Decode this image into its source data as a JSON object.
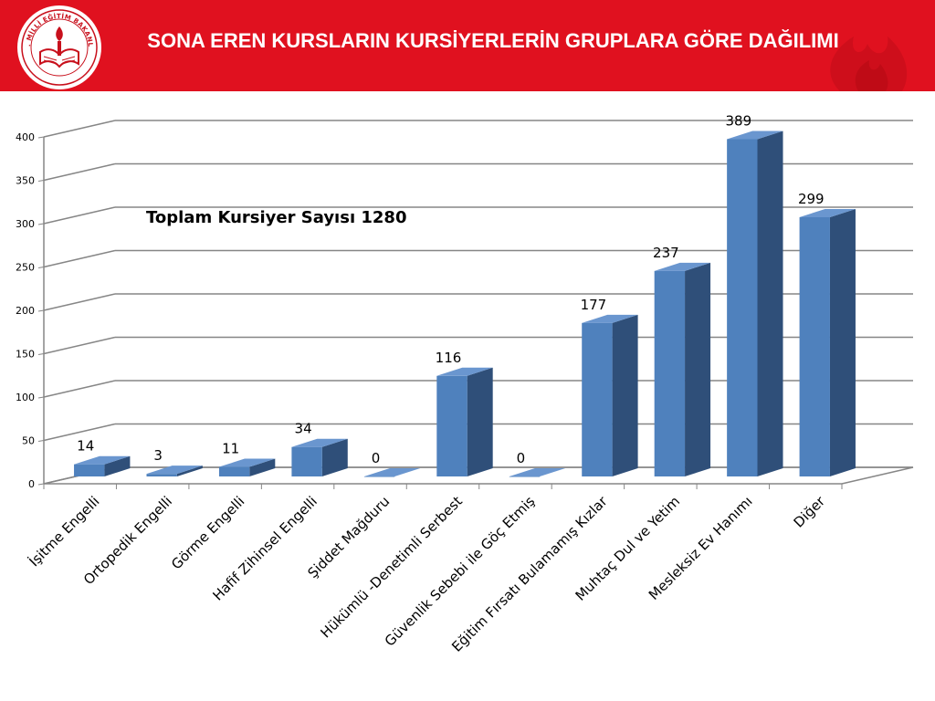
{
  "header": {
    "title": "SONA EREN KURSLARIN KURSİYERLERİN GRUPLARA GÖRE DAĞILIMI",
    "logo_text": "T.C. MİLLİ EĞİTİM BAKANLIĞI"
  },
  "colors": {
    "header_red": "#e0111f",
    "bar_front": "#4f81bd",
    "bar_side": "#2f4f79",
    "bar_top": "#6a96cf",
    "grid": "#868686"
  },
  "chart_data": {
    "type": "bar",
    "categories": [
      "İşitme Engelli",
      "Ortopedik Engelli",
      "Görme Engelli",
      "Hafif Zihinsel Engelli",
      "Şiddet Mağduru",
      "Hükümlü -Denetimli Serbest",
      "Güvenlik Sebebi ile  Göç Etmiş",
      "Eğitim  Fırsatı Bulamamış Kızlar",
      "Muhtaç Dul ve Yetim",
      "Mesleksiz  Ev Hanımı",
      "Diğer"
    ],
    "values": [
      14,
      3,
      11,
      34,
      0,
      116,
      0,
      177,
      237,
      389,
      299
    ],
    "ylim": [
      0,
      400
    ],
    "yticks": [
      "0",
      "50",
      "100",
      "150",
      "200",
      "250",
      "300",
      "350",
      "400"
    ],
    "grid": true,
    "style": "3d-column",
    "annotation": "Toplam  Kursiyer Sayısı 1280"
  }
}
